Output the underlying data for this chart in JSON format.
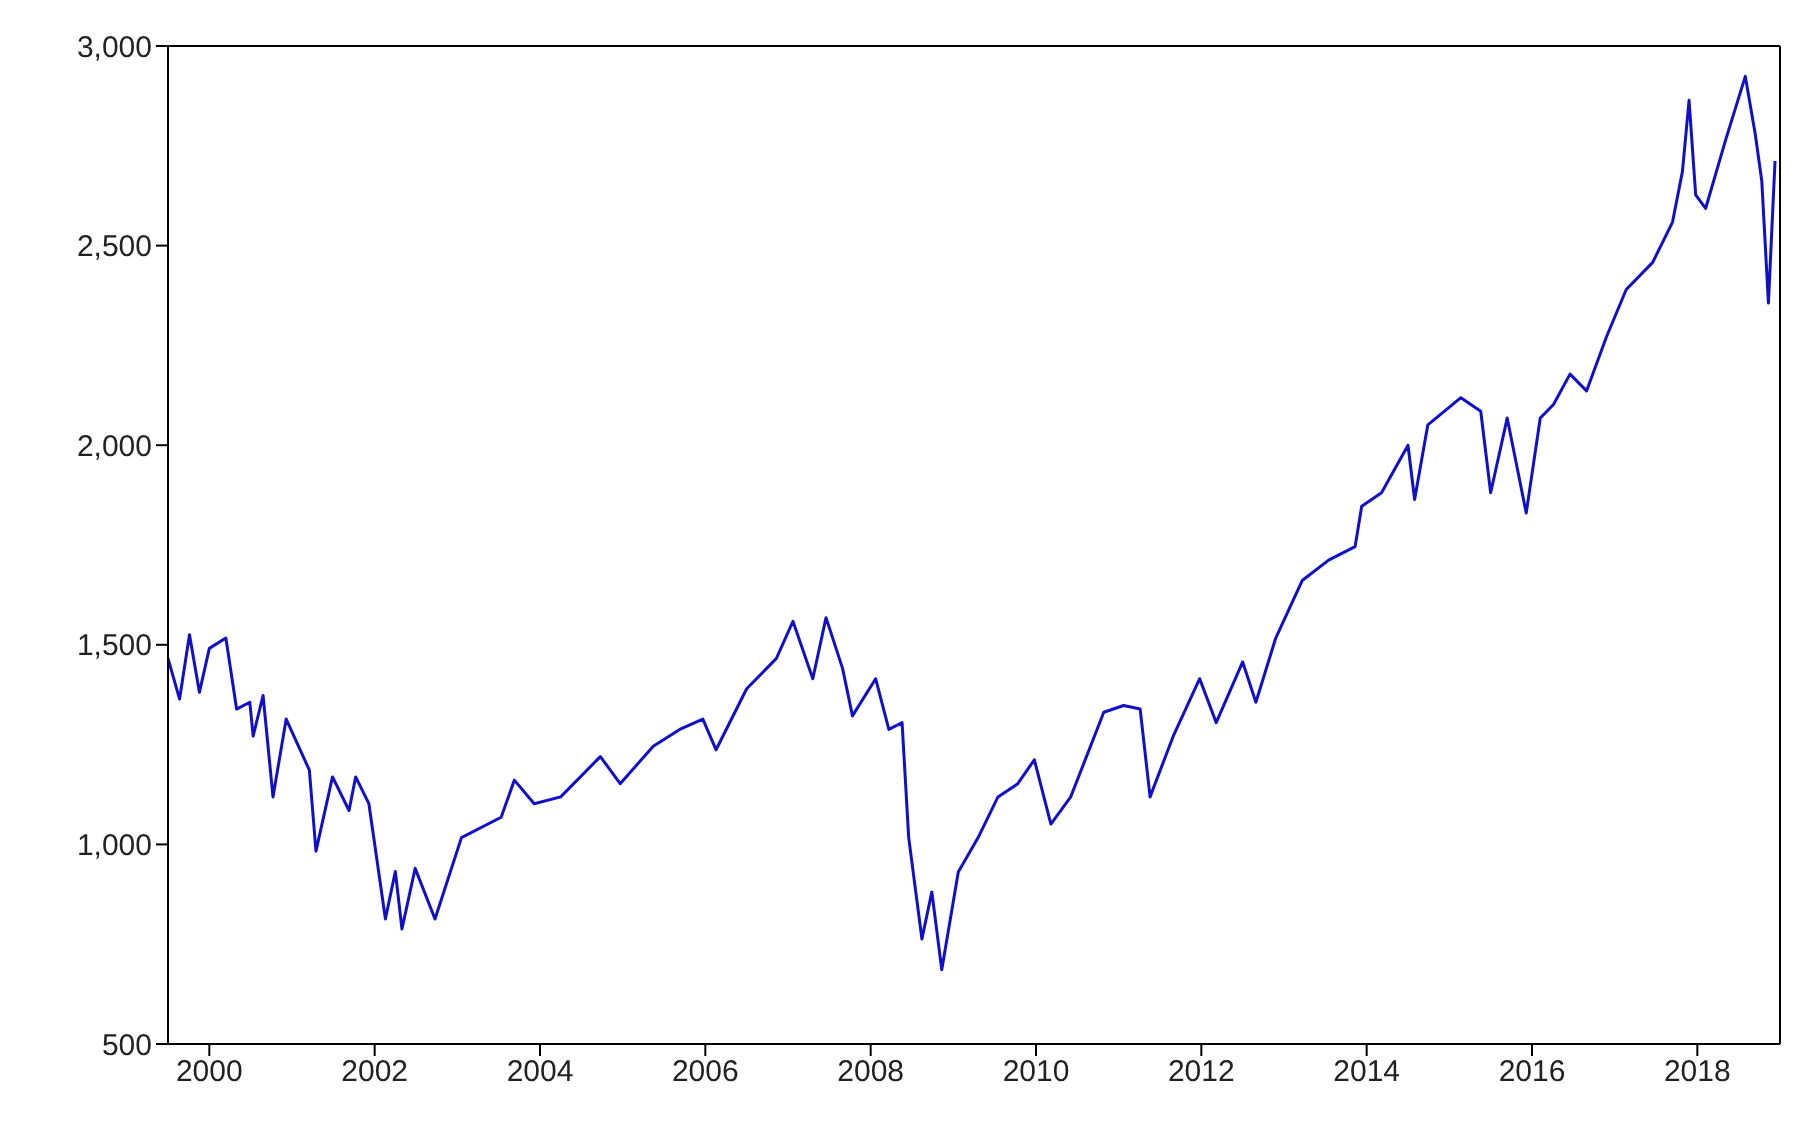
{
  "chart_data": {
    "type": "line",
    "x": [
      2000.0,
      2000.14,
      2000.26,
      2000.38,
      2000.5,
      2000.7,
      2000.83,
      2000.99,
      2001.03,
      2001.15,
      2001.27,
      2001.43,
      2001.71,
      2001.79,
      2001.99,
      2002.19,
      2002.27,
      2002.43,
      2002.63,
      2002.75,
      2002.83,
      2002.99,
      2003.23,
      2003.55,
      2004.03,
      2004.19,
      2004.43,
      2004.75,
      2005.23,
      2005.47,
      2005.87,
      2006.19,
      2006.47,
      2006.63,
      2007.0,
      2007.36,
      2007.56,
      2007.8,
      2007.96,
      2008.16,
      2008.28,
      2008.56,
      2008.72,
      2008.88,
      2008.96,
      2009.12,
      2009.24,
      2009.36,
      2009.56,
      2009.8,
      2010.04,
      2010.28,
      2010.48,
      2010.68,
      2010.92,
      2011.32,
      2011.56,
      2011.76,
      2011.88,
      2012.16,
      2012.48,
      2012.68,
      2013.0,
      2013.16,
      2013.4,
      2013.72,
      2014.04,
      2014.36,
      2014.44,
      2014.68,
      2015.0,
      2015.08,
      2015.24,
      2015.64,
      2015.88,
      2016.0,
      2016.2,
      2016.43,
      2016.6,
      2016.76,
      2016.96,
      2017.16,
      2017.4,
      2017.64,
      2017.96,
      2018.2,
      2018.32,
      2018.4,
      2018.48,
      2018.6,
      2018.84,
      2019.08,
      2019.2,
      2019.28,
      2019.36,
      2019.44
    ],
    "series": [
      {
        "color": "#1010cc",
        "values": [
          1466,
          1364,
          1525,
          1381,
          1491,
          1517,
          1339,
          1356,
          1271,
          1373,
          1119,
          1314,
          1186,
          983,
          1169,
          1085,
          1169,
          1102,
          813,
          932,
          788,
          940,
          813,
          1017,
          1068,
          1161,
          1102,
          1119,
          1220,
          1152,
          1246,
          1288,
          1314,
          1237,
          1390,
          1466,
          1559,
          1415,
          1568,
          1441,
          1322,
          1415,
          1288,
          1305,
          1017,
          763,
          881,
          686,
          931,
          1017,
          1119,
          1152,
          1212,
          1051,
          1119,
          1331,
          1348,
          1339,
          1119,
          1271,
          1415,
          1305,
          1457,
          1356,
          1517,
          1661,
          1712,
          1746,
          1847,
          1881,
          2000,
          1864,
          2051,
          2119,
          2085,
          1881,
          2068,
          1830,
          2068,
          2102,
          2178,
          2136,
          2271,
          2390,
          2458,
          2559,
          2686,
          2864,
          2627,
          2593,
          2763,
          2924,
          2780,
          2661,
          2356,
          2712
        ]
      }
    ],
    "xlim": [
      2000,
      2019.5
    ],
    "xticks": [
      {
        "value": 2000.5,
        "label": "2000"
      },
      {
        "value": 2002.5,
        "label": "2002"
      },
      {
        "value": 2004.5,
        "label": "2004"
      },
      {
        "value": 2006.5,
        "label": "2006"
      },
      {
        "value": 2008.5,
        "label": "2008"
      },
      {
        "value": 2010.5,
        "label": "2010"
      },
      {
        "value": 2012.5,
        "label": "2012"
      },
      {
        "value": 2014.5,
        "label": "2014"
      },
      {
        "value": 2016.5,
        "label": "2016"
      },
      {
        "value": 2018.5,
        "label": "2018"
      }
    ],
    "ylim": [
      500,
      3000
    ],
    "yticks": [
      {
        "value": 500,
        "label": "500"
      },
      {
        "value": 1000,
        "label": "1,000"
      },
      {
        "value": 1500,
        "label": "1,500"
      },
      {
        "value": 2000,
        "label": "2,000"
      },
      {
        "value": 2500,
        "label": "2,500"
      },
      {
        "value": 3000,
        "label": "3,000"
      }
    ],
    "grid": false,
    "line_style": "solid",
    "marker": "none"
  }
}
